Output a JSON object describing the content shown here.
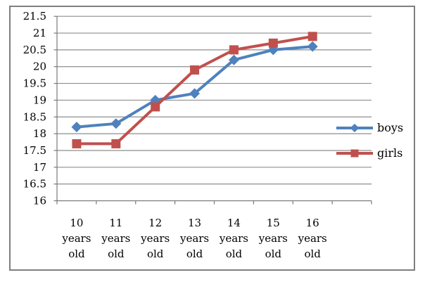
{
  "chart_data": {
    "type": "line",
    "title": "",
    "xlabel": "",
    "ylabel": "",
    "categories": [
      "10 years old",
      "11 years old",
      "12 years old",
      "13 years old",
      "14 years old",
      "15 years old",
      "16 years old"
    ],
    "series": [
      {
        "name": "boys",
        "color": "#4F81BD",
        "marker": "diamond",
        "values": [
          18.2,
          18.3,
          19.0,
          19.2,
          20.2,
          20.5,
          20.6
        ]
      },
      {
        "name": "girls",
        "color": "#C0504D",
        "marker": "square",
        "values": [
          17.7,
          17.7,
          18.8,
          19.9,
          20.5,
          20.7,
          20.9
        ]
      }
    ],
    "ylim": [
      16,
      21.5
    ],
    "ytick_step": 0.5,
    "yticks": [
      "16",
      "16.5",
      "17",
      "17.5",
      "18",
      "18.5",
      "19",
      "19.5",
      "20",
      "20.5",
      "21",
      "21.5"
    ],
    "grid": "horizontal",
    "legend_position": "right"
  },
  "palette": {
    "boys_blue": "#4F81BD",
    "girls_red": "#C0504D",
    "gridline_gray": "#8E8E8E",
    "axis_gray": "#7A7A7A",
    "frame_gray": "#7F7F7F",
    "text_black": "#000000"
  }
}
